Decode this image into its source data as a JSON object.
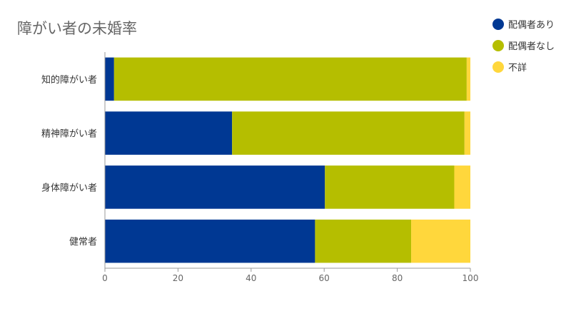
{
  "chart_data": {
    "type": "bar",
    "orientation": "horizontal",
    "stacked": true,
    "title": "障がい者の未婚率",
    "categories": [
      "知的障がい者",
      "精神障がい者",
      "身体障がい者",
      "健常者"
    ],
    "series": [
      {
        "name": "配偶者あり",
        "color": "#003893",
        "values": [
          2.5,
          34.8,
          60.2,
          57.5
        ]
      },
      {
        "name": "配偶者なし",
        "color": "#b5be00",
        "values": [
          96.5,
          63.6,
          35.4,
          26.3
        ]
      },
      {
        "name": "不詳",
        "color": "#ffd73c",
        "values": [
          1.0,
          1.6,
          4.4,
          16.2
        ]
      }
    ],
    "xlim": [
      0,
      100
    ],
    "xticks": [
      0,
      20,
      40,
      60,
      80,
      100
    ],
    "grid": false,
    "legend_position": "top-right"
  }
}
